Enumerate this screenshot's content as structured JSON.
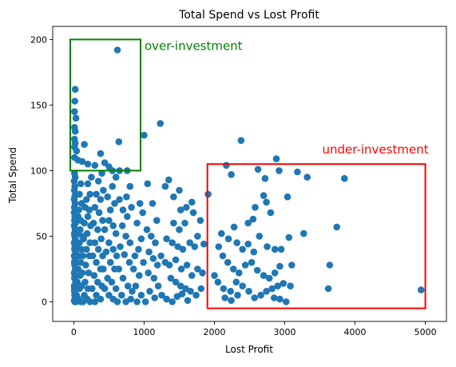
{
  "chart_data": {
    "type": "scatter",
    "title": "Total Spend vs Lost Profit",
    "xlabel": "Lost Profit",
    "ylabel": "Total Spend",
    "xlim": [
      -300,
      5300
    ],
    "ylim": [
      -15,
      210
    ],
    "xticks": [
      0,
      1000,
      2000,
      3000,
      4000,
      5000
    ],
    "yticks": [
      0,
      50,
      100,
      150,
      200
    ],
    "grid": false,
    "marker_color": "#1f77b4",
    "annotations": [
      {
        "label": "over-investment",
        "color": "#008000",
        "x0": -50,
        "x1": 950,
        "y0": 100,
        "y1": 200
      },
      {
        "label": "under-investment",
        "color": "#ff0000",
        "x0": 1900,
        "x1": 5000,
        "y0": -5,
        "y1": 105
      }
    ],
    "points": [
      [
        620,
        192
      ],
      [
        20,
        162
      ],
      [
        15,
        153
      ],
      [
        10,
        145
      ],
      [
        30,
        140
      ],
      [
        10,
        133
      ],
      [
        20,
        130
      ],
      [
        10,
        124
      ],
      [
        20,
        121
      ],
      [
        150,
        120
      ],
      [
        640,
        122
      ],
      [
        10,
        118
      ],
      [
        40,
        115
      ],
      [
        10,
        110
      ],
      [
        380,
        113
      ],
      [
        60,
        108
      ],
      [
        120,
        107
      ],
      [
        200,
        105
      ],
      [
        300,
        104
      ],
      [
        440,
        106
      ],
      [
        500,
        103
      ],
      [
        550,
        100
      ],
      [
        650,
        100
      ],
      [
        760,
        100
      ],
      [
        1000,
        127
      ],
      [
        1230,
        136
      ],
      [
        2380,
        123
      ],
      [
        2170,
        104
      ],
      [
        2880,
        109
      ],
      [
        2240,
        97
      ],
      [
        2620,
        101
      ],
      [
        2720,
        94
      ],
      [
        2920,
        100
      ],
      [
        3180,
        99
      ],
      [
        3320,
        95
      ],
      [
        3850,
        94
      ],
      [
        3040,
        80
      ],
      [
        2700,
        81
      ],
      [
        1910,
        82
      ],
      [
        2580,
        72
      ],
      [
        2740,
        76
      ],
      [
        2800,
        68
      ],
      [
        2550,
        63
      ],
      [
        2480,
        60
      ],
      [
        2280,
        57
      ],
      [
        2100,
        52
      ],
      [
        2200,
        48
      ],
      [
        2320,
        45
      ],
      [
        2400,
        40
      ],
      [
        2480,
        44
      ],
      [
        2560,
        38
      ],
      [
        2640,
        50
      ],
      [
        2750,
        42
      ],
      [
        2860,
        40
      ],
      [
        2950,
        40
      ],
      [
        3060,
        49
      ],
      [
        3100,
        28
      ],
      [
        3270,
        52
      ],
      [
        3740,
        57
      ],
      [
        2060,
        42
      ],
      [
        2120,
        35
      ],
      [
        2190,
        30
      ],
      [
        2270,
        25
      ],
      [
        2350,
        22
      ],
      [
        2440,
        28
      ],
      [
        2530,
        30
      ],
      [
        2610,
        24
      ],
      [
        2700,
        20
      ],
      [
        2780,
        18
      ],
      [
        2860,
        22
      ],
      [
        2930,
        27
      ],
      [
        2000,
        20
      ],
      [
        2050,
        15
      ],
      [
        2130,
        10
      ],
      [
        2230,
        8
      ],
      [
        2310,
        15
      ],
      [
        2400,
        12
      ],
      [
        2490,
        8
      ],
      [
        2570,
        3
      ],
      [
        2660,
        5
      ],
      [
        2740,
        8
      ],
      [
        2820,
        10
      ],
      [
        2900,
        12
      ],
      [
        2980,
        14
      ],
      [
        3080,
        12
      ],
      [
        3620,
        10
      ],
      [
        3640,
        28
      ],
      [
        4940,
        9
      ],
      [
        2150,
        3
      ],
      [
        2240,
        1
      ],
      [
        2330,
        5
      ],
      [
        2850,
        3
      ],
      [
        3020,
        0
      ],
      [
        2930,
        2
      ],
      [
        1300,
        88
      ],
      [
        1350,
        93
      ],
      [
        1420,
        80
      ],
      [
        1500,
        85
      ],
      [
        1520,
        70
      ],
      [
        1600,
        72
      ],
      [
        1680,
        76
      ],
      [
        1420,
        60
      ],
      [
        1500,
        55
      ],
      [
        1580,
        60
      ],
      [
        1700,
        68
      ],
      [
        1800,
        62
      ],
      [
        1760,
        50
      ],
      [
        1320,
        48
      ],
      [
        1400,
        45
      ],
      [
        1480,
        42
      ],
      [
        1550,
        40
      ],
      [
        1650,
        45
      ],
      [
        1720,
        42
      ],
      [
        1850,
        44
      ],
      [
        1240,
        35
      ],
      [
        1300,
        30
      ],
      [
        1360,
        28
      ],
      [
        1450,
        32
      ],
      [
        1530,
        25
      ],
      [
        1610,
        28
      ],
      [
        1680,
        20
      ],
      [
        1760,
        25
      ],
      [
        1830,
        22
      ],
      [
        1380,
        18
      ],
      [
        1450,
        15
      ],
      [
        1520,
        12
      ],
      [
        1590,
        10
      ],
      [
        1660,
        8
      ],
      [
        1740,
        5
      ],
      [
        1810,
        10
      ],
      [
        1250,
        5
      ],
      [
        1320,
        2
      ],
      [
        1400,
        0
      ],
      [
        1470,
        4
      ],
      [
        1540,
        6
      ],
      [
        1620,
        1
      ],
      [
        1050,
        90
      ],
      [
        1120,
        75
      ],
      [
        1180,
        62
      ],
      [
        1040,
        55
      ],
      [
        1100,
        50
      ],
      [
        1160,
        45
      ],
      [
        1070,
        38
      ],
      [
        1130,
        33
      ],
      [
        1190,
        28
      ],
      [
        1060,
        22
      ],
      [
        1140,
        18
      ],
      [
        1200,
        12
      ],
      [
        1080,
        8
      ],
      [
        1150,
        3
      ],
      [
        1020,
        0
      ],
      [
        980,
        68
      ],
      [
        940,
        75
      ],
      [
        900,
        60
      ],
      [
        960,
        48
      ],
      [
        920,
        40
      ],
      [
        870,
        35
      ],
      [
        990,
        30
      ],
      [
        930,
        20
      ],
      [
        880,
        12
      ],
      [
        960,
        5
      ],
      [
        900,
        0
      ],
      [
        800,
        88
      ],
      [
        750,
        80
      ],
      [
        820,
        72
      ],
      [
        760,
        65
      ],
      [
        700,
        70
      ],
      [
        650,
        78
      ],
      [
        690,
        58
      ],
      [
        740,
        50
      ],
      [
        800,
        45
      ],
      [
        660,
        42
      ],
      [
        720,
        36
      ],
      [
        790,
        30
      ],
      [
        850,
        25
      ],
      [
        640,
        25
      ],
      [
        700,
        18
      ],
      [
        770,
        12
      ],
      [
        830,
        8
      ],
      [
        680,
        5
      ],
      [
        740,
        0
      ],
      [
        810,
        2
      ],
      [
        600,
        95
      ],
      [
        550,
        88
      ],
      [
        580,
        75
      ],
      [
        520,
        70
      ],
      [
        480,
        80
      ],
      [
        500,
        62
      ],
      [
        560,
        58
      ],
      [
        600,
        52
      ],
      [
        440,
        55
      ],
      [
        500,
        45
      ],
      [
        560,
        40
      ],
      [
        610,
        35
      ],
      [
        460,
        38
      ],
      [
        520,
        30
      ],
      [
        580,
        25
      ],
      [
        420,
        25
      ],
      [
        480,
        18
      ],
      [
        540,
        15
      ],
      [
        600,
        10
      ],
      [
        440,
        10
      ],
      [
        500,
        5
      ],
      [
        560,
        2
      ],
      [
        620,
        0
      ],
      [
        400,
        98
      ],
      [
        350,
        92
      ],
      [
        420,
        85
      ],
      [
        380,
        78
      ],
      [
        320,
        82
      ],
      [
        300,
        72
      ],
      [
        360,
        68
      ],
      [
        410,
        62
      ],
      [
        280,
        60
      ],
      [
        340,
        55
      ],
      [
        390,
        48
      ],
      [
        300,
        45
      ],
      [
        350,
        40
      ],
      [
        410,
        35
      ],
      [
        270,
        35
      ],
      [
        320,
        30
      ],
      [
        380,
        25
      ],
      [
        290,
        20
      ],
      [
        340,
        15
      ],
      [
        400,
        12
      ],
      [
        260,
        10
      ],
      [
        320,
        5
      ],
      [
        380,
        2
      ],
      [
        300,
        0
      ],
      [
        250,
        95
      ],
      [
        200,
        90
      ],
      [
        230,
        82
      ],
      [
        180,
        78
      ],
      [
        220,
        70
      ],
      [
        160,
        72
      ],
      [
        200,
        65
      ],
      [
        240,
        58
      ],
      [
        150,
        60
      ],
      [
        190,
        52
      ],
      [
        230,
        45
      ],
      [
        140,
        48
      ],
      [
        180,
        40
      ],
      [
        220,
        35
      ],
      [
        130,
        35
      ],
      [
        170,
        28
      ],
      [
        210,
        22
      ],
      [
        120,
        22
      ],
      [
        160,
        15
      ],
      [
        200,
        10
      ],
      [
        110,
        12
      ],
      [
        150,
        5
      ],
      [
        190,
        2
      ],
      [
        230,
        0
      ],
      [
        130,
        0
      ],
      [
        100,
        90
      ],
      [
        80,
        82
      ],
      [
        110,
        75
      ],
      [
        70,
        70
      ],
      [
        100,
        62
      ],
      [
        60,
        65
      ],
      [
        90,
        55
      ],
      [
        120,
        50
      ],
      [
        50,
        52
      ],
      [
        80,
        45
      ],
      [
        110,
        40
      ],
      [
        40,
        42
      ],
      [
        70,
        35
      ],
      [
        100,
        30
      ],
      [
        30,
        30
      ],
      [
        60,
        25
      ],
      [
        90,
        20
      ],
      [
        20,
        20
      ],
      [
        50,
        15
      ],
      [
        80,
        10
      ],
      [
        10,
        10
      ],
      [
        40,
        5
      ],
      [
        70,
        2
      ],
      [
        100,
        0
      ],
      [
        30,
        0
      ],
      [
        10,
        98
      ],
      [
        20,
        95
      ],
      [
        5,
        92
      ],
      [
        15,
        88
      ],
      [
        8,
        85
      ],
      [
        25,
        82
      ],
      [
        12,
        80
      ],
      [
        5,
        78
      ],
      [
        18,
        75
      ],
      [
        8,
        72
      ],
      [
        22,
        70
      ],
      [
        5,
        68
      ],
      [
        15,
        65
      ],
      [
        10,
        62
      ],
      [
        25,
        60
      ],
      [
        5,
        58
      ],
      [
        18,
        55
      ],
      [
        8,
        52
      ],
      [
        12,
        50
      ],
      [
        20,
        48
      ],
      [
        5,
        45
      ],
      [
        15,
        42
      ],
      [
        10,
        40
      ],
      [
        25,
        38
      ],
      [
        5,
        35
      ],
      [
        18,
        32
      ],
      [
        8,
        30
      ],
      [
        12,
        28
      ],
      [
        22,
        25
      ],
      [
        5,
        22
      ],
      [
        15,
        20
      ],
      [
        10,
        18
      ],
      [
        25,
        15
      ],
      [
        5,
        12
      ],
      [
        18,
        10
      ],
      [
        8,
        8
      ],
      [
        12,
        5
      ],
      [
        20,
        3
      ],
      [
        5,
        1
      ],
      [
        15,
        0
      ]
    ]
  }
}
